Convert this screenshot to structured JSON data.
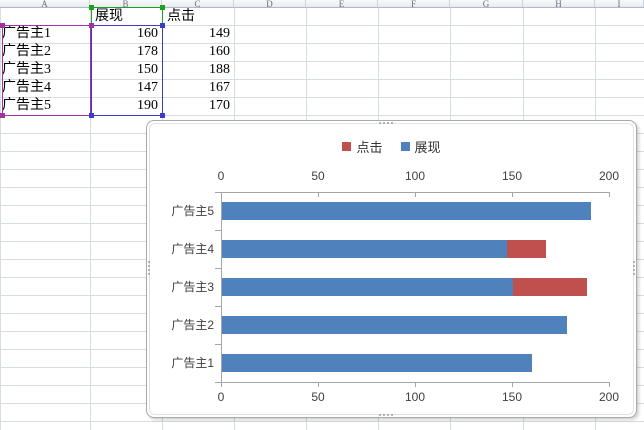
{
  "sheet": {
    "column_headers": [
      "A",
      "B",
      "C",
      "D",
      "E",
      "F",
      "G",
      "H",
      "I"
    ],
    "header_cells": {
      "b1": "展现",
      "c1": "点击"
    },
    "rows": [
      {
        "name": "广告主1",
        "impressions": "160",
        "clicks": "149"
      },
      {
        "name": "广告主2",
        "impressions": "178",
        "clicks": "160"
      },
      {
        "name": "广告主3",
        "impressions": "150",
        "clicks": "188"
      },
      {
        "name": "广告主4",
        "impressions": "147",
        "clicks": "167"
      },
      {
        "name": "广告主5",
        "impressions": "190",
        "clicks": "170"
      }
    ],
    "selection_colors": {
      "category_range": "#a033a0",
      "series_name_range": "#20a020",
      "value_range": "#3c3cc8"
    }
  },
  "chart_data": {
    "type": "bar",
    "orientation": "horizontal",
    "title": "",
    "categories": [
      "广告主1",
      "广告主2",
      "广告主3",
      "广告主4",
      "广告主5"
    ],
    "series": [
      {
        "name": "点击",
        "color": "#c0504d",
        "values": [
          149,
          160,
          188,
          167,
          170
        ]
      },
      {
        "name": "展现",
        "color": "#4f81bd",
        "values": [
          160,
          178,
          150,
          147,
          190
        ]
      }
    ],
    "xlim": [
      0,
      200
    ],
    "xticks": [
      0,
      50,
      100,
      150,
      200
    ],
    "legend_position": "top",
    "bars_overlap": "100%",
    "grid": false
  }
}
